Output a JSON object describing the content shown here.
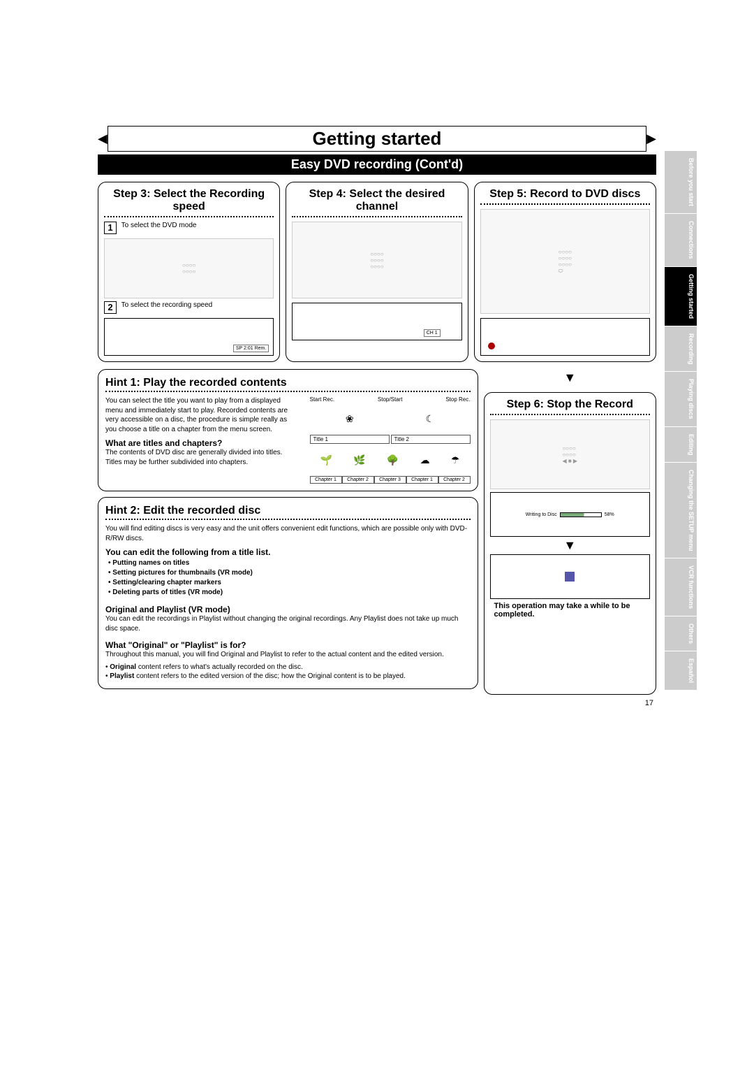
{
  "page_title": "Getting started",
  "subtitle": "Easy DVD recording (Cont'd)",
  "steps": {
    "s3": {
      "title": "Step 3: Select the Recording speed",
      "line1_num": "1",
      "line1": "To select the DVD mode",
      "line2_num": "2",
      "line2": "To select the recording speed",
      "screen_label": "SP 2:01 Rem."
    },
    "s4": {
      "title": "Step 4: Select the desired channel",
      "screen_label": "CH 1"
    },
    "s5": {
      "title": "Step 5: Record to DVD discs"
    },
    "s6": {
      "title": "Step 6: Stop the Record",
      "writing_label": "Writing to Disc",
      "percent": "58%",
      "note": "This operation may take a while to be completed."
    }
  },
  "hint1": {
    "title": "Hint 1: Play the recorded contents",
    "body": "You can select the title you want to play from a displayed menu and immediately start to play. Recorded contents are very accessible on a disc, the procedure is simple really as you choose a title on a chapter from the menu screen.",
    "sub1_title": "What are titles and chapters?",
    "sub1_body": "The contents of DVD disc are generally divided into titles. Titles may be further subdivided into chapters.",
    "diagram": {
      "start": "Start Rec.",
      "stopstart": "Stop/Start",
      "stop": "Stop Rec.",
      "t1": "Title 1",
      "t2": "Title 2",
      "c1": "Chapter 1",
      "c2": "Chapter 2",
      "c3": "Chapter 3",
      "c4": "Chapter 1",
      "c5": "Chapter 2"
    }
  },
  "hint2": {
    "title": "Hint 2: Edit the recorded disc",
    "body": "You will find editing discs is very easy and the unit offers convenient edit functions, which are possible only with DVD-R/RW discs.",
    "sub1_title": "You can edit the following from a title list.",
    "bullets": [
      "Putting names on titles",
      "Setting pictures for thumbnails (VR mode)",
      "Setting/clearing chapter markers",
      "Deleting parts of titles (VR mode)"
    ],
    "sub2_title": "Original and Playlist (VR mode)",
    "sub2_body": "You can edit the recordings in Playlist without changing the original recordings. Any Playlist does not take up much disc space.",
    "sub3_title": "What \"Original\" or \"Playlist\" is for?",
    "sub3_body": "Throughout this manual, you will find Original and Playlist to refer to the actual content and the edited version.",
    "b1_label": "Original",
    "b1_text": " content refers to what's actually recorded on the disc.",
    "b2_label": "Playlist",
    "b2_text": " content refers to the edited version of the disc; how the Original content is to be played."
  },
  "side_tabs": [
    {
      "label": "Before you start",
      "active": false
    },
    {
      "label": "Connections",
      "active": false
    },
    {
      "label": "Getting started",
      "active": true
    },
    {
      "label": "Recording",
      "active": false
    },
    {
      "label": "Playing discs",
      "active": false
    },
    {
      "label": "Editing",
      "active": false
    },
    {
      "label": "Changing the SETUP menu",
      "active": false
    },
    {
      "label": "VCR functions",
      "active": false
    },
    {
      "label": "Others",
      "active": false
    },
    {
      "label": "Español",
      "active": false
    }
  ],
  "page_num": "17"
}
